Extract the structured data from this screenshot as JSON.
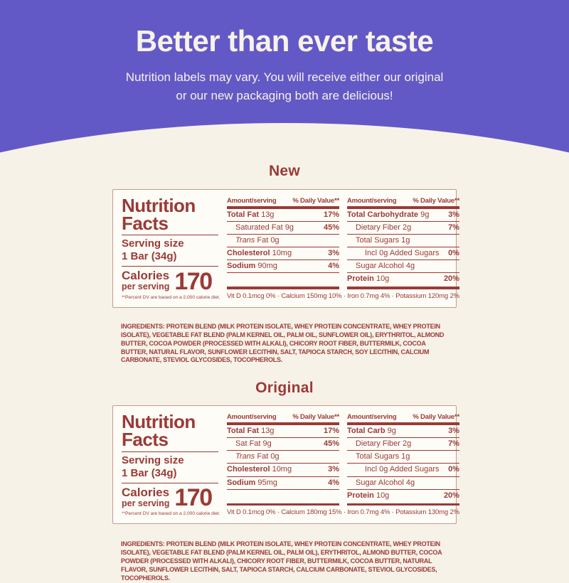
{
  "colors": {
    "purple": "#6359c6",
    "cream": "#f7f2e8",
    "red": "#9a3a37",
    "label_bg": "#fdfcf6",
    "label_border": "#c49a8f"
  },
  "hero": {
    "title": "Better than ever taste",
    "subtitle_line1": "Nutrition labels may vary. You will receive either our original",
    "subtitle_line2": "or our new packaging both are delicious!"
  },
  "new_section": {
    "heading": "New",
    "label": {
      "facts_line1": "Nutrition",
      "facts_line2": "Facts",
      "serving_label": "Serving size",
      "serving_value": "1 Bar (34g)",
      "calories_label1": "Calories",
      "calories_label2": "per serving",
      "calories_value": "170",
      "footnote": "**Percent DV are based on a 2,000 calorie diet.",
      "col1": {
        "header_amount": "Amount/serving",
        "header_dv": "% Daily Value**",
        "rows": [
          {
            "bold": "Total Fat",
            "text": " 13g",
            "dv": "17%",
            "lvl": "lvl0"
          },
          {
            "text": "Saturated Fat 9g",
            "dv": "45%",
            "lvl": "lvl1"
          },
          {
            "italic": "Trans",
            "text": " Fat 0g",
            "lvl": "lvl1"
          },
          {
            "bold": "Cholesterol",
            "text": " 10mg",
            "dv": "3%",
            "lvl": "lvl0"
          },
          {
            "bold": "Sodium",
            "text": " 90mg",
            "dv": "4%",
            "lvl": "lvl0"
          },
          {
            "lvl": "spacer"
          }
        ]
      },
      "col2": {
        "header_amount": "Amount/serving",
        "header_dv": "% Daily Value**",
        "rows": [
          {
            "bold": "Total Carbohydrate",
            "text": " 9g",
            "dv": "3%",
            "lvl": "lvl0"
          },
          {
            "text": "Dietary Fiber 2g",
            "dv": "7%",
            "lvl": "lvl1"
          },
          {
            "text": "Total Sugars 1g",
            "lvl": "lvl1"
          },
          {
            "text": "Incl 0g Added Sugars",
            "dv": "0%",
            "lvl": "lvl2"
          },
          {
            "text": "Sugar Alcohol 4g",
            "lvl": "lvl1"
          },
          {
            "bold": "Protein",
            "text": " 10g",
            "dv": "20%",
            "lvl": "lvl0"
          }
        ]
      },
      "vitamins": "Vit D 0.1mcg 0% · Calcium 150mg 10% · Iron 0.7mg 4% · Potassium 120mg 2%"
    },
    "ingredients": "INGREDIENTS: PROTEIN BLEND (MILK PROTEIN ISOLATE, WHEY PROTEIN CONCENTRATE, WHEY PROTEIN ISOLATE), VEGETABLE FAT BLEND (PALM KERNEL OIL, PALM OIL, SUNFLOWER OIL), ERYTHRITOL, ALMOND BUTTER, COCOA POWDER (PROCESSED WITH ALKALI), CHICORY ROOT FIBER, BUTTERMILK, COCOA BUTTER, NATURAL FLAVOR, SUNFLOWER LECITHIN, SALT, TAPIOCA STARCH, SOY LECITHIN, CALCIUM CARBONATE, STEVIOL GLYCOSIDES, TOCOPHEROLS."
  },
  "original_section": {
    "heading": "Original",
    "label": {
      "facts_line1": "Nutrition",
      "facts_line2": "Facts",
      "serving_label": "Serving size",
      "serving_value": "1 Bar (34g)",
      "calories_label1": "Calories",
      "calories_label2": "per serving",
      "calories_value": "170",
      "footnote": "**Percent DV are based on a 2,000 calorie diet.",
      "col1": {
        "header_amount": "Amount/serving",
        "header_dv": "% Daily Value**",
        "rows": [
          {
            "bold": "Total Fat",
            "text": " 13g",
            "dv": "17%",
            "lvl": "lvl0"
          },
          {
            "text": "Sat Fat 9g",
            "dv": "45%",
            "lvl": "lvl1"
          },
          {
            "italic": "Trans",
            "text": " Fat 0g",
            "lvl": "lvl1"
          },
          {
            "bold": "Cholesterol",
            "text": " 10mg",
            "dv": "3%",
            "lvl": "lvl0"
          },
          {
            "bold": "Sodium",
            "text": " 95mg",
            "dv": "4%",
            "lvl": "lvl0"
          },
          {
            "lvl": "spacer"
          }
        ]
      },
      "col2": {
        "header_amount": "Amount/serving",
        "header_dv": "% Daily Value**",
        "rows": [
          {
            "bold": "Total Carb",
            "text": " 9g",
            "dv": "3%",
            "lvl": "lvl0"
          },
          {
            "text": "Dietary Fiber 2g",
            "dv": "7%",
            "lvl": "lvl1"
          },
          {
            "text": "Total Sugars 1g",
            "lvl": "lvl1"
          },
          {
            "text": "Incl 0g Added Sugars",
            "dv": "0%",
            "lvl": "lvl2"
          },
          {
            "text": "Sugar Alcohol 4g",
            "lvl": "lvl1"
          },
          {
            "bold": "Protein",
            "text": " 10g",
            "dv": "20%",
            "lvl": "lvl0"
          }
        ]
      },
      "vitamins": "Vit D 0.1mcg 0% · Calcium 180mg 15% · Iron 0.7mg 4% · Potassium 130mg 2%"
    },
    "ingredients": "INGREDIENTS: PROTEIN BLEND (MILK PROTEIN ISOLATE, WHEY PROTEIN CONCENTRATE, WHEY PROTEIN ISOLATE), VEGETABLE FAT BLEND (PALM KERNEL OIL, PALM OIL), ERYTHRITOL, ALMOND BUTTER, COCOA POWDER (PROCESSED WITH ALKALI), CHICORY ROOT FIBER, BUTTERMILK, COCOA BUTTER, NATURAL FLAVOR, SUNFLOWER LECITHIN, SALT, TAPIOCA STARCH, CALCIUM CARBONATE, STEVIOL GLYCOSIDES, TOCOPHEROLS."
  }
}
